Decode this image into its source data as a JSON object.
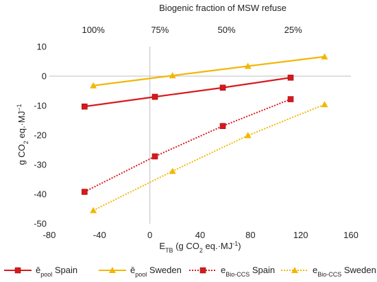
{
  "chart_data": {
    "type": "scatter",
    "top_axis_title": "Biogenic fraction of MSW refuse",
    "top_ticks": [
      {
        "x": -45,
        "label": "100%"
      },
      {
        "x": 8,
        "label": "75%"
      },
      {
        "x": 61,
        "label": "50%"
      },
      {
        "x": 114,
        "label": "25%"
      }
    ],
    "xlabel": "E_TB (g CO2 eq.·MJ−1)",
    "xlabel_parts": {
      "main": "E",
      "sub": "TB",
      "mid": " (g CO",
      "sub2": "2",
      "tail": " eq.·MJ",
      "sup": "-1",
      "close": ")"
    },
    "ylabel": "g CO2 eq.·MJ−1",
    "ylabel_parts": {
      "a": "g CO",
      "sub": "2",
      "b": " eq.·MJ",
      "sup": "−1"
    },
    "xlim": [
      -80,
      160
    ],
    "ylim": [
      -50,
      10
    ],
    "xticks": [
      -80,
      -40,
      0,
      40,
      80,
      120,
      160
    ],
    "yticks": [
      10,
      0,
      -10,
      -20,
      -30,
      -40,
      -50
    ],
    "grid": false,
    "legend_position": "bottom",
    "series": [
      {
        "name": "ē_pool Spain",
        "label_main": "ē",
        "label_sub": "pool",
        "label_rest": " Spain",
        "color": "#d7191c",
        "style": "solid",
        "marker": "square",
        "x": [
          -52,
          4,
          58,
          112
        ],
        "y": [
          -10.3,
          -7.0,
          -3.9,
          -0.5
        ]
      },
      {
        "name": "ē_pool Sweden",
        "label_main": "ē",
        "label_sub": "pool",
        "label_rest": " Sweden",
        "color": "#f2b705",
        "style": "solid",
        "marker": "triangle",
        "x": [
          -45,
          18,
          78,
          139
        ],
        "y": [
          -3.2,
          0.2,
          3.4,
          6.6
        ]
      },
      {
        "name": "e_Bio-CCS Spain",
        "label_main": "e",
        "label_sub": "Bio-CCS",
        "label_rest": " Spain",
        "color": "#d7191c",
        "style": "dotted",
        "marker": "square",
        "x": [
          -52,
          4,
          58,
          112
        ],
        "y": [
          -39.2,
          -27.2,
          -16.9,
          -7.8
        ]
      },
      {
        "name": "e_Bio-CCS Sweden",
        "label_main": "e",
        "label_sub": "Bio-CCS",
        "label_rest": " Sweden",
        "color": "#f2b705",
        "style": "dotted",
        "marker": "triangle",
        "x": [
          -45,
          18,
          78,
          139
        ],
        "y": [
          -45.5,
          -32.2,
          -20.1,
          -9.6
        ]
      }
    ]
  }
}
